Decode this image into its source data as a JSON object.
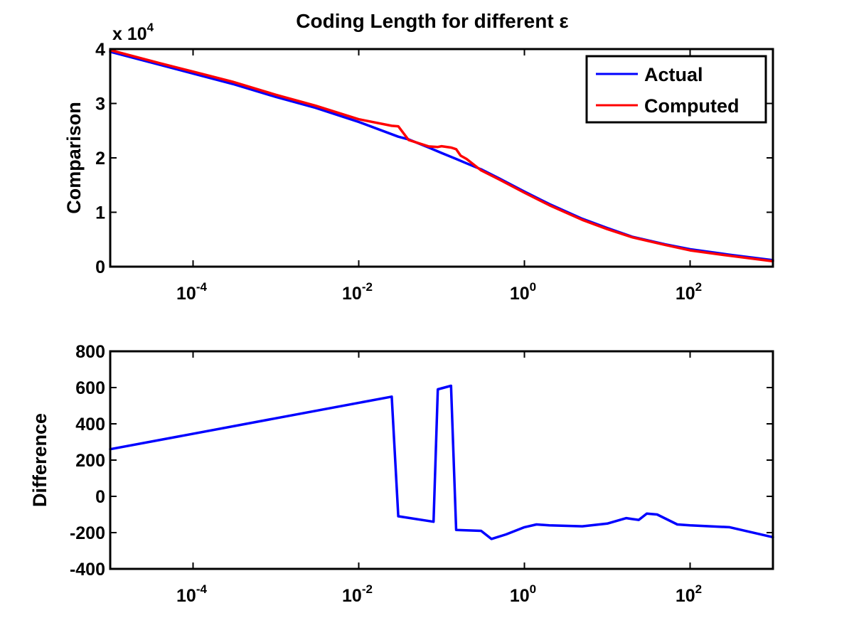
{
  "figure_title": "Coding Length for different ε",
  "chart_data": [
    {
      "type": "line",
      "title": "Coding Length for different ε",
      "xscale": "log",
      "xlim": [
        1e-05,
        1000
      ],
      "ylim": [
        0,
        40000
      ],
      "ylabel": "Comparison",
      "xlabel": "",
      "y_multiplier_label": "x 10",
      "y_multiplier_exp": "4",
      "x_ticks": [
        {
          "value": 0.0001,
          "base": "10",
          "exp": "-4"
        },
        {
          "value": 0.01,
          "base": "10",
          "exp": "-2"
        },
        {
          "value": 1,
          "base": "10",
          "exp": "0"
        },
        {
          "value": 100,
          "base": "10",
          "exp": "2"
        }
      ],
      "y_ticks": [
        {
          "value": 0,
          "label": "0"
        },
        {
          "value": 10000,
          "label": "1"
        },
        {
          "value": 20000,
          "label": "2"
        },
        {
          "value": 30000,
          "label": "3"
        },
        {
          "value": 40000,
          "label": "4"
        }
      ],
      "grid": false,
      "legend": "top-right",
      "series": [
        {
          "name": "Actual",
          "color": "#0000ff",
          "x": [
            1e-05,
            4e-05,
            0.0001,
            0.0003,
            0.001,
            0.003,
            0.01,
            0.03,
            0.04,
            0.07,
            0.1,
            0.15,
            0.2,
            0.3,
            0.5,
            1,
            2,
            5,
            10,
            20,
            50,
            100,
            300,
            1000
          ],
          "y": [
            39500,
            37100,
            35500,
            33600,
            31200,
            29200,
            26600,
            23900,
            23400,
            21900,
            20900,
            19800,
            19000,
            17900,
            16200,
            13800,
            11500,
            8800,
            7100,
            5500,
            4100,
            3200,
            2200,
            1200
          ]
        },
        {
          "name": "Computed",
          "color": "#ff0000",
          "x": [
            1e-05,
            4e-05,
            0.0001,
            0.0003,
            0.001,
            0.003,
            0.01,
            0.025,
            0.03,
            0.04,
            0.07,
            0.09,
            0.1,
            0.13,
            0.15,
            0.17,
            0.2,
            0.3,
            0.5,
            1,
            2,
            5,
            10,
            20,
            50,
            100,
            300,
            1000
          ],
          "y": [
            39800,
            37400,
            35850,
            34000,
            31600,
            29600,
            27100,
            25900,
            25800,
            23300,
            22100,
            22000,
            22150,
            21900,
            21600,
            20400,
            19800,
            17700,
            16000,
            13600,
            11300,
            8600,
            6900,
            5400,
            4000,
            3000,
            2000,
            1000
          ]
        }
      ]
    },
    {
      "type": "line",
      "xscale": "log",
      "xlim": [
        1e-05,
        1000
      ],
      "ylim": [
        -400,
        800
      ],
      "ylabel": "Difference",
      "xlabel": "",
      "x_ticks": [
        {
          "value": 0.0001,
          "base": "10",
          "exp": "-4"
        },
        {
          "value": 0.01,
          "base": "10",
          "exp": "-2"
        },
        {
          "value": 1,
          "base": "10",
          "exp": "0"
        },
        {
          "value": 100,
          "base": "10",
          "exp": "2"
        }
      ],
      "y_ticks": [
        {
          "value": -400,
          "label": "-400"
        },
        {
          "value": -200,
          "label": "-200"
        },
        {
          "value": 0,
          "label": "0"
        },
        {
          "value": 200,
          "label": "200"
        },
        {
          "value": 400,
          "label": "400"
        },
        {
          "value": 600,
          "label": "600"
        },
        {
          "value": 800,
          "label": "800"
        }
      ],
      "grid": false,
      "series": [
        {
          "color": "#0000ff",
          "x": [
            1e-05,
            0.025,
            0.03,
            0.08,
            0.09,
            0.13,
            0.15,
            0.3,
            0.4,
            0.6,
            1,
            1.4,
            2,
            5,
            10,
            17,
            20,
            24,
            30,
            40,
            70,
            100,
            300,
            1000
          ],
          "y": [
            260,
            550,
            -110,
            -140,
            590,
            610,
            -185,
            -190,
            -235,
            -210,
            -170,
            -155,
            -160,
            -165,
            -150,
            -120,
            -125,
            -130,
            -95,
            -100,
            -155,
            -160,
            -170,
            -225
          ]
        }
      ]
    }
  ]
}
